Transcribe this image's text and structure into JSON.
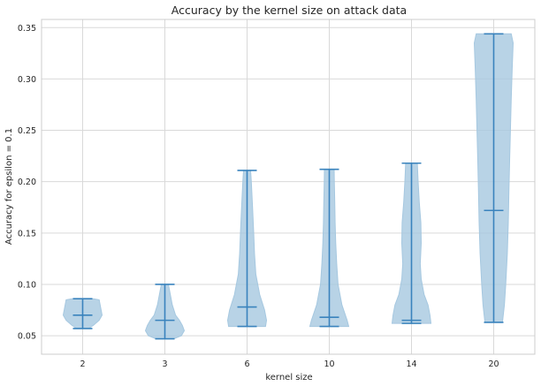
{
  "chart_data": {
    "type": "violin",
    "title": "Accuracy by the kernel size on attack data",
    "xlabel": "kernel size",
    "ylabel": "Accuracy for epsilon = 0.1",
    "categories": [
      "2",
      "3",
      "6",
      "10",
      "14",
      "20"
    ],
    "ylim": [
      0.032,
      0.358
    ],
    "yticks": [
      0.05,
      0.1,
      0.15,
      0.2,
      0.25,
      0.3,
      0.35
    ],
    "ytick_labels": [
      "0.05",
      "0.10",
      "0.15",
      "0.20",
      "0.25",
      "0.30",
      "0.35"
    ],
    "grid": true,
    "series": [
      {
        "category": "2",
        "min": 0.057,
        "median": 0.07,
        "max": 0.086,
        "profile": [
          [
            0.057,
            0.3
          ],
          [
            0.06,
            0.55
          ],
          [
            0.065,
            0.85
          ],
          [
            0.07,
            1.0
          ],
          [
            0.075,
            0.95
          ],
          [
            0.08,
            0.9
          ],
          [
            0.085,
            0.85
          ],
          [
            0.086,
            0.55
          ]
        ]
      },
      {
        "category": "3",
        "min": 0.047,
        "median": 0.065,
        "max": 0.1,
        "profile": [
          [
            0.047,
            0.45
          ],
          [
            0.05,
            0.85
          ],
          [
            0.055,
            1.0
          ],
          [
            0.06,
            0.9
          ],
          [
            0.065,
            0.75
          ],
          [
            0.07,
            0.55
          ],
          [
            0.08,
            0.38
          ],
          [
            0.09,
            0.28
          ],
          [
            0.1,
            0.18
          ]
        ]
      },
      {
        "category": "6",
        "min": 0.059,
        "median": 0.078,
        "max": 0.211,
        "profile": [
          [
            0.059,
            0.95
          ],
          [
            0.065,
            1.0
          ],
          [
            0.075,
            0.9
          ],
          [
            0.09,
            0.65
          ],
          [
            0.11,
            0.45
          ],
          [
            0.13,
            0.38
          ],
          [
            0.15,
            0.34
          ],
          [
            0.175,
            0.28
          ],
          [
            0.2,
            0.22
          ],
          [
            0.211,
            0.18
          ]
        ]
      },
      {
        "category": "10",
        "min": 0.059,
        "median": 0.068,
        "max": 0.212,
        "profile": [
          [
            0.059,
            1.0
          ],
          [
            0.065,
            0.92
          ],
          [
            0.08,
            0.65
          ],
          [
            0.1,
            0.45
          ],
          [
            0.12,
            0.38
          ],
          [
            0.14,
            0.33
          ],
          [
            0.16,
            0.3
          ],
          [
            0.18,
            0.28
          ],
          [
            0.2,
            0.26
          ],
          [
            0.212,
            0.25
          ]
        ]
      },
      {
        "category": "14",
        "min": 0.062,
        "median": 0.065,
        "max": 0.218,
        "profile": [
          [
            0.062,
            1.0
          ],
          [
            0.07,
            0.95
          ],
          [
            0.08,
            0.85
          ],
          [
            0.09,
            0.65
          ],
          [
            0.105,
            0.5
          ],
          [
            0.12,
            0.45
          ],
          [
            0.14,
            0.5
          ],
          [
            0.16,
            0.48
          ],
          [
            0.18,
            0.4
          ],
          [
            0.2,
            0.34
          ],
          [
            0.218,
            0.3
          ]
        ]
      },
      {
        "category": "20",
        "min": 0.063,
        "median": 0.172,
        "max": 0.344,
        "profile": [
          [
            0.063,
            0.45
          ],
          [
            0.08,
            0.55
          ],
          [
            0.1,
            0.62
          ],
          [
            0.13,
            0.7
          ],
          [
            0.16,
            0.75
          ],
          [
            0.19,
            0.78
          ],
          [
            0.22,
            0.82
          ],
          [
            0.25,
            0.86
          ],
          [
            0.28,
            0.9
          ],
          [
            0.31,
            0.95
          ],
          [
            0.335,
            1.0
          ],
          [
            0.344,
            0.9
          ]
        ]
      }
    ],
    "colors": {
      "violin_fill": "#a6c8e0",
      "violin_edge": "#a6c8e0",
      "lines": "#3a83bd",
      "grid": "#d9d9d9",
      "axes": "#cccccc"
    }
  }
}
